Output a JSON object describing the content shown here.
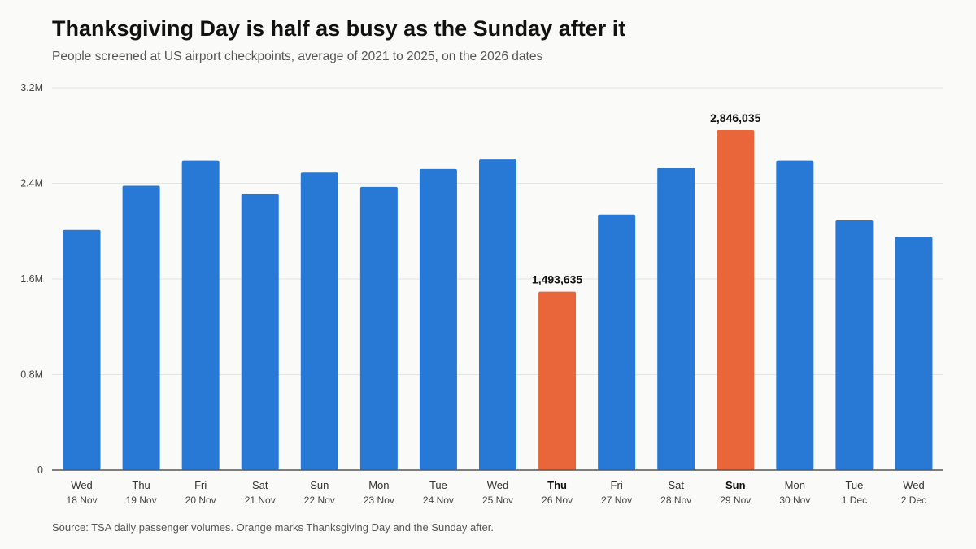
{
  "title": "Thanksgiving Day is half as busy as the Sunday after it",
  "subtitle": "People screened at US airport checkpoints, average of 2021 to 2025, on the 2026 dates",
  "source": "Source: TSA daily passenger volumes. Orange marks Thanksgiving Day and the Sunday after.",
  "colors": {
    "default_bar": "#2878d6",
    "highlight_bar": "#e8663a",
    "gridline": "#e4e4e4",
    "axis": "#555555",
    "background": "#fafaf8"
  },
  "chart_data": {
    "type": "bar",
    "categories": [
      {
        "day": "Wed",
        "date": "18 Nov"
      },
      {
        "day": "Thu",
        "date": "19 Nov"
      },
      {
        "day": "Fri",
        "date": "20 Nov"
      },
      {
        "day": "Sat",
        "date": "21 Nov"
      },
      {
        "day": "Sun",
        "date": "22 Nov"
      },
      {
        "day": "Mon",
        "date": "23 Nov"
      },
      {
        "day": "Tue",
        "date": "24 Nov"
      },
      {
        "day": "Wed",
        "date": "25 Nov"
      },
      {
        "day": "Thu",
        "date": "26 Nov"
      },
      {
        "day": "Fri",
        "date": "27 Nov"
      },
      {
        "day": "Sat",
        "date": "28 Nov"
      },
      {
        "day": "Sun",
        "date": "29 Nov"
      },
      {
        "day": "Mon",
        "date": "30 Nov"
      },
      {
        "day": "Tue",
        "date": "1 Dec"
      },
      {
        "day": "Wed",
        "date": "2 Dec"
      }
    ],
    "values": [
      2010000,
      2380000,
      2590000,
      2310000,
      2490000,
      2370000,
      2520000,
      2600000,
      1493635,
      2140000,
      2530000,
      2846035,
      2590000,
      2090000,
      1950000
    ],
    "highlighted": [
      8,
      11
    ],
    "data_labels": [
      {
        "index": 8,
        "text": "1,493,635"
      },
      {
        "index": 11,
        "text": "2,846,035"
      }
    ],
    "ylim": [
      0,
      3200000
    ],
    "yticks": [
      {
        "value": 0,
        "label": "0"
      },
      {
        "value": 800000,
        "label": "0.8M"
      },
      {
        "value": 1600000,
        "label": "1.6M"
      },
      {
        "value": 2400000,
        "label": "2.4M"
      },
      {
        "value": 3200000,
        "label": "3.2M"
      }
    ],
    "grid": true,
    "xlabel": "",
    "ylabel": ""
  }
}
